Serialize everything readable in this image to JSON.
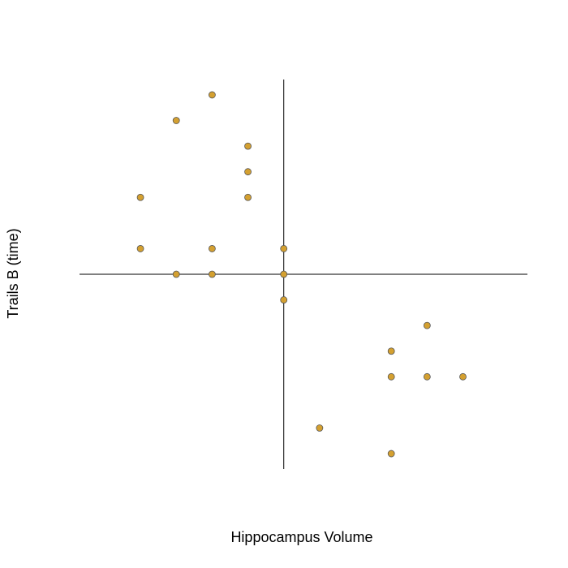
{
  "chart_data": {
    "type": "scatter",
    "title": "",
    "xlabel": "Hippocampus Volume",
    "ylabel": "Trails B (time)",
    "xlim": [
      -5.7,
      6.8
    ],
    "ylim": [
      -7.6,
      7.6
    ],
    "axes_cross_at": [
      0,
      0
    ],
    "grid": false,
    "point_color": "#d4a030",
    "series": [
      {
        "points": [
          {
            "x": -2,
            "y": 7
          },
          {
            "x": -3,
            "y": 6
          },
          {
            "x": -1,
            "y": 5
          },
          {
            "x": -1,
            "y": 4
          },
          {
            "x": -4,
            "y": 3
          },
          {
            "x": -1,
            "y": 3
          },
          {
            "x": -4,
            "y": 1
          },
          {
            "x": -2,
            "y": 1
          },
          {
            "x": 0,
            "y": 1
          },
          {
            "x": -3,
            "y": 0
          },
          {
            "x": -2,
            "y": 0
          },
          {
            "x": 0,
            "y": 0
          },
          {
            "x": 0,
            "y": -1
          },
          {
            "x": 4,
            "y": -2
          },
          {
            "x": 3,
            "y": -3
          },
          {
            "x": 3,
            "y": -4
          },
          {
            "x": 4,
            "y": -4
          },
          {
            "x": 5,
            "y": -4
          },
          {
            "x": 1,
            "y": -6
          },
          {
            "x": 3,
            "y": -7
          }
        ]
      }
    ]
  }
}
